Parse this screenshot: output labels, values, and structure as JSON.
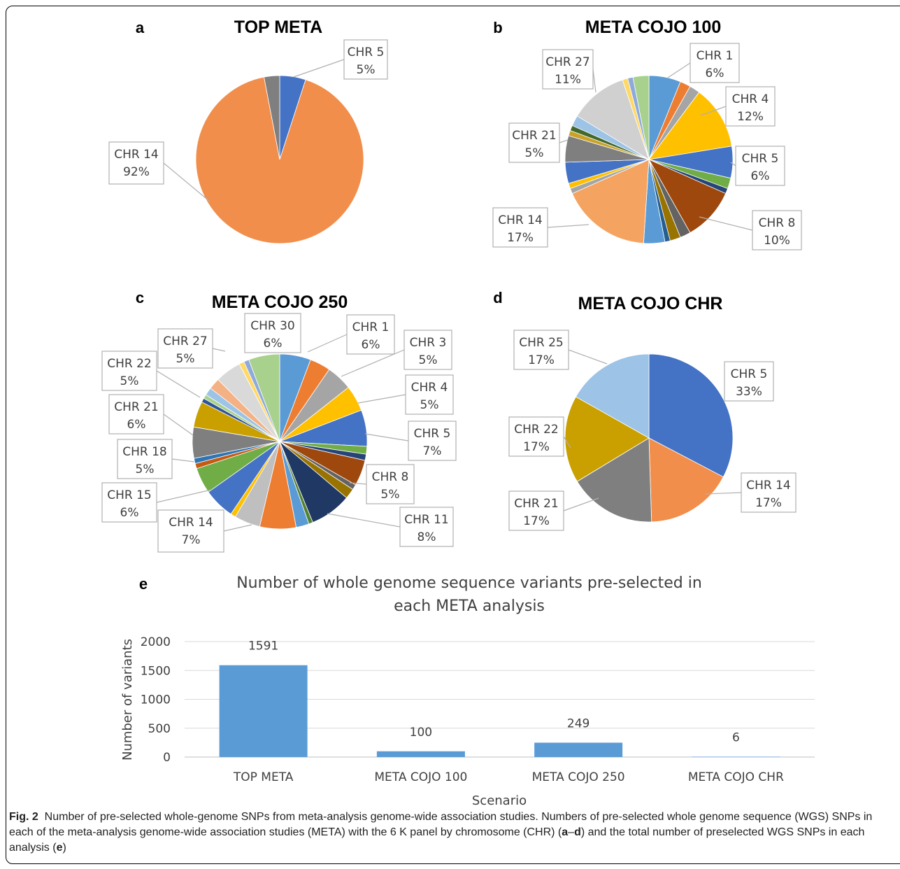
{
  "chart_data": [
    {
      "type": "pie",
      "panel": "a",
      "title": "TOP META",
      "slices": [
        {
          "label": "CHR 5",
          "value": 5,
          "shown": "5%",
          "color": "#4472C4"
        },
        {
          "label": "CHR 14",
          "value": 92,
          "shown": "92%",
          "color": "#F28E4B"
        },
        {
          "label": "",
          "value": 3,
          "shown": "",
          "color": "#7F7F7F"
        }
      ]
    },
    {
      "type": "pie",
      "panel": "b",
      "title": "META COJO 100",
      "slices": [
        {
          "label": "CHR 1",
          "value": 6,
          "shown": "6%",
          "color": "#5B9BD5"
        },
        {
          "label": "",
          "value": 2,
          "shown": "",
          "color": "#ED7D31"
        },
        {
          "label": "",
          "value": 2,
          "shown": "",
          "color": "#A5A5A5"
        },
        {
          "label": "CHR 4",
          "value": 12,
          "shown": "12%",
          "color": "#FFC000"
        },
        {
          "label": "CHR 5",
          "value": 6,
          "shown": "6%",
          "color": "#4472C4"
        },
        {
          "label": "",
          "value": 2,
          "shown": "",
          "color": "#70AD47"
        },
        {
          "label": "",
          "value": 1,
          "shown": "",
          "color": "#264478"
        },
        {
          "label": "CHR 8",
          "value": 10,
          "shown": "10%",
          "color": "#9E480E"
        },
        {
          "label": "",
          "value": 2,
          "shown": "",
          "color": "#636363"
        },
        {
          "label": "",
          "value": 2,
          "shown": "",
          "color": "#997300"
        },
        {
          "label": "",
          "value": 1,
          "shown": "",
          "color": "#255E91"
        },
        {
          "label": "",
          "value": 4,
          "shown": "",
          "color": "#5B9BD5"
        },
        {
          "label": "CHR 14",
          "value": 17,
          "shown": "17%",
          "color": "#F4A460"
        },
        {
          "label": "",
          "value": 1,
          "shown": "",
          "color": "#A5A5A5"
        },
        {
          "label": "",
          "value": 1,
          "shown": "",
          "color": "#FFC000"
        },
        {
          "label": "",
          "value": 4,
          "shown": "",
          "color": "#4472C4"
        },
        {
          "label": "CHR 21",
          "value": 5,
          "shown": "5%",
          "color": "#7F7F7F"
        },
        {
          "label": "",
          "value": 1,
          "shown": "",
          "color": "#C9A227"
        },
        {
          "label": "",
          "value": 1,
          "shown": "",
          "color": "#43682B"
        },
        {
          "label": "",
          "value": 2,
          "shown": "",
          "color": "#9DC3E6"
        },
        {
          "label": "CHR 27",
          "value": 11,
          "shown": "11%",
          "color": "#D0D0D0"
        },
        {
          "label": "",
          "value": 1,
          "shown": "",
          "color": "#FFD966"
        },
        {
          "label": "",
          "value": 1,
          "shown": "",
          "color": "#8EA9DB"
        },
        {
          "label": "",
          "value": 3,
          "shown": "",
          "color": "#A9D18E"
        }
      ]
    },
    {
      "type": "pie",
      "panel": "c",
      "title": "META COJO 250",
      "slices": [
        {
          "label": "CHR 1",
          "value": 6,
          "shown": "6%",
          "color": "#5B9BD5"
        },
        {
          "label": "",
          "value": 4,
          "shown": "",
          "color": "#ED7D31"
        },
        {
          "label": "CHR 3",
          "value": 5,
          "shown": "5%",
          "color": "#A5A5A5"
        },
        {
          "label": "CHR 4",
          "value": 5,
          "shown": "5%",
          "color": "#FFC000"
        },
        {
          "label": "CHR 5",
          "value": 7,
          "shown": "7%",
          "color": "#4472C4"
        },
        {
          "label": "",
          "value": 1.5,
          "shown": "",
          "color": "#70AD47"
        },
        {
          "label": "",
          "value": 1.2,
          "shown": "",
          "color": "#264478"
        },
        {
          "label": "CHR 8",
          "value": 5,
          "shown": "5%",
          "color": "#9E480E"
        },
        {
          "label": "",
          "value": 1,
          "shown": "",
          "color": "#636363"
        },
        {
          "label": "",
          "value": 2,
          "shown": "",
          "color": "#997300"
        },
        {
          "label": "CHR 11",
          "value": 8,
          "shown": "8%",
          "color": "#1F3864"
        },
        {
          "label": "",
          "value": 0.8,
          "shown": "",
          "color": "#548235"
        },
        {
          "label": "",
          "value": 2.5,
          "shown": "",
          "color": "#5B9BD5"
        },
        {
          "label": "CHR 14",
          "value": 7,
          "shown": "7%",
          "color": "#ED7D31"
        },
        {
          "label": "",
          "value": 5,
          "shown": "",
          "color": "#BFBFBF"
        },
        {
          "label": "",
          "value": 1,
          "shown": "",
          "color": "#FFC000"
        },
        {
          "label": "CHR 15",
          "value": 6,
          "shown": "6%",
          "color": "#4472C4"
        },
        {
          "label": "CHR 18",
          "value": 5,
          "shown": "5%",
          "color": "#70AD47"
        },
        {
          "label": "",
          "value": 1,
          "shown": "",
          "color": "#C55A11"
        },
        {
          "label": "",
          "value": 1,
          "shown": "",
          "color": "#2E75B6"
        },
        {
          "label": "CHR 21",
          "value": 6,
          "shown": "6%",
          "color": "#7F7F7F"
        },
        {
          "label": "CHR 22",
          "value": 5,
          "shown": "5%",
          "color": "#C9A000"
        },
        {
          "label": "",
          "value": 0.8,
          "shown": "",
          "color": "#2F5597"
        },
        {
          "label": "",
          "value": 0.8,
          "shown": "",
          "color": "#A9D18E"
        },
        {
          "label": "",
          "value": 1.5,
          "shown": "",
          "color": "#9DC3E6"
        },
        {
          "label": "",
          "value": 2.2,
          "shown": "",
          "color": "#F4B183"
        },
        {
          "label": "CHR 27",
          "value": 5,
          "shown": "5%",
          "color": "#D9D9D9"
        },
        {
          "label": "",
          "value": 1,
          "shown": "",
          "color": "#FFD966"
        },
        {
          "label": "",
          "value": 1,
          "shown": "",
          "color": "#8EA9DB"
        },
        {
          "label": "CHR 30",
          "value": 6,
          "shown": "6%",
          "color": "#A9D18E"
        }
      ]
    },
    {
      "type": "pie",
      "panel": "d",
      "title": "META COJO CHR",
      "slices": [
        {
          "label": "CHR 5",
          "value": 33,
          "shown": "33%",
          "color": "#4472C4"
        },
        {
          "label": "CHR 14",
          "value": 17,
          "shown": "17%",
          "color": "#F28E4B"
        },
        {
          "label": "CHR 21",
          "value": 17,
          "shown": "17%",
          "color": "#7F7F7F"
        },
        {
          "label": "CHR 22",
          "value": 17,
          "shown": "17%",
          "color": "#C9A000"
        },
        {
          "label": "CHR 25",
          "value": 17,
          "shown": "17%",
          "color": "#9DC3E6"
        }
      ]
    },
    {
      "type": "bar",
      "panel": "e",
      "title": "Number of whole genome sequence variants pre-selected in each META analysis",
      "categories": [
        "TOP META",
        "META COJO 100",
        "META COJO 250",
        "META COJO CHR"
      ],
      "values": [
        1591,
        100,
        249,
        6
      ],
      "xlabel": "Scenario",
      "ylabel": "Number of variants",
      "ylim": [
        0,
        2000
      ],
      "yticks": [
        "0",
        "500",
        "1000",
        "1500",
        "2000"
      ],
      "grid": true,
      "color": "#5B9BD5"
    }
  ],
  "caption": {
    "fig_label": "Fig. 2",
    "text1": "Number of pre-selected whole-genome SNPs from meta-analysis genome-wide association studies. Numbers of pre-selected whole genome sequence (WGS) SNPs in each of the meta-analysis genome-wide association studies (META) with the 6 K panel by chromosome (CHR) (",
    "bold_a": "a",
    "dash": "–",
    "bold_d": "d",
    "text2": ") and the total number of preselected WGS SNPs in each analysis (",
    "bold_e": "e",
    "text3": ")"
  }
}
